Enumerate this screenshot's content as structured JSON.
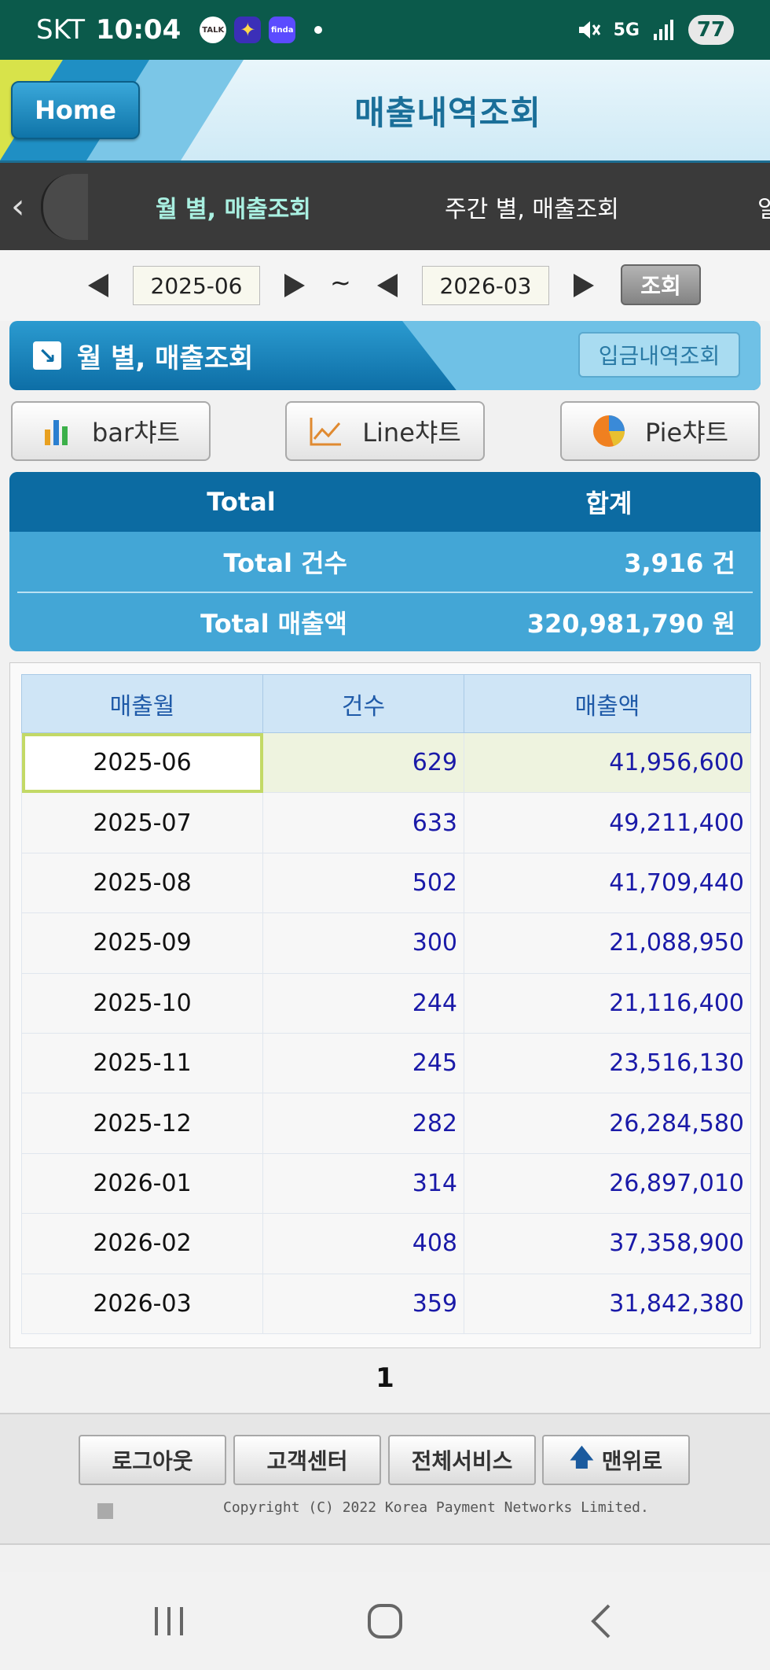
{
  "status_bar": {
    "carrier": "SKT",
    "time": "10:04",
    "app_talk": "TALK",
    "app_finda": "finda",
    "network": "5G",
    "battery": "77"
  },
  "header": {
    "home_label": "Home",
    "title": "매출내역조회"
  },
  "tabs": [
    {
      "label": "월 별, 매출조회",
      "active": true
    },
    {
      "label": "주간 별, 매출조회",
      "active": false
    },
    {
      "label": "일",
      "active": false
    }
  ],
  "filter": {
    "start": "2025-06",
    "end": "2026-03",
    "tilde": "~",
    "search_label": "조회"
  },
  "section": {
    "title": "월 별, 매출조회",
    "deposit_button": "입금내역조회"
  },
  "chart_buttons": [
    {
      "label": "bar챠트",
      "icon": "bar-chart-icon"
    },
    {
      "label": "Line챠트",
      "icon": "line-chart-icon"
    },
    {
      "label": "Pie챠트",
      "icon": "pie-chart-icon"
    }
  ],
  "summary": {
    "header_left": "Total",
    "header_right": "합계",
    "rows": [
      {
        "label": "Total 건수",
        "value": "3,916 건"
      },
      {
        "label": "Total 매출액",
        "value": "320,981,790 원"
      }
    ]
  },
  "table": {
    "columns": [
      "매출월",
      "건수",
      "매출액"
    ],
    "rows": [
      {
        "month": "2025-06",
        "count": "629",
        "amount": "41,956,600"
      },
      {
        "month": "2025-07",
        "count": "633",
        "amount": "49,211,400"
      },
      {
        "month": "2025-08",
        "count": "502",
        "amount": "41,709,440"
      },
      {
        "month": "2025-09",
        "count": "300",
        "amount": "21,088,950"
      },
      {
        "month": "2025-10",
        "count": "244",
        "amount": "21,116,400"
      },
      {
        "month": "2025-11",
        "count": "245",
        "amount": "23,516,130"
      },
      {
        "month": "2025-12",
        "count": "282",
        "amount": "26,284,580"
      },
      {
        "month": "2026-01",
        "count": "314",
        "amount": "26,897,010"
      },
      {
        "month": "2026-02",
        "count": "408",
        "amount": "37,358,900"
      },
      {
        "month": "2026-03",
        "count": "359",
        "amount": "31,842,380"
      }
    ],
    "selected_index": 0
  },
  "pager": {
    "current": "1"
  },
  "footer": {
    "buttons": [
      "로그아웃",
      "고객센터",
      "전체서비스",
      "맨위로"
    ],
    "copyright": "Copyright (C) 2022 Korea Payment Networks Limited."
  },
  "colors": {
    "status_bar": "#0b5a4b",
    "accent_blue": "#0c6ba2",
    "table_header": "#cfe5f6",
    "number_text": "#1a1aa8",
    "active_tab": "#a9f0e1"
  }
}
